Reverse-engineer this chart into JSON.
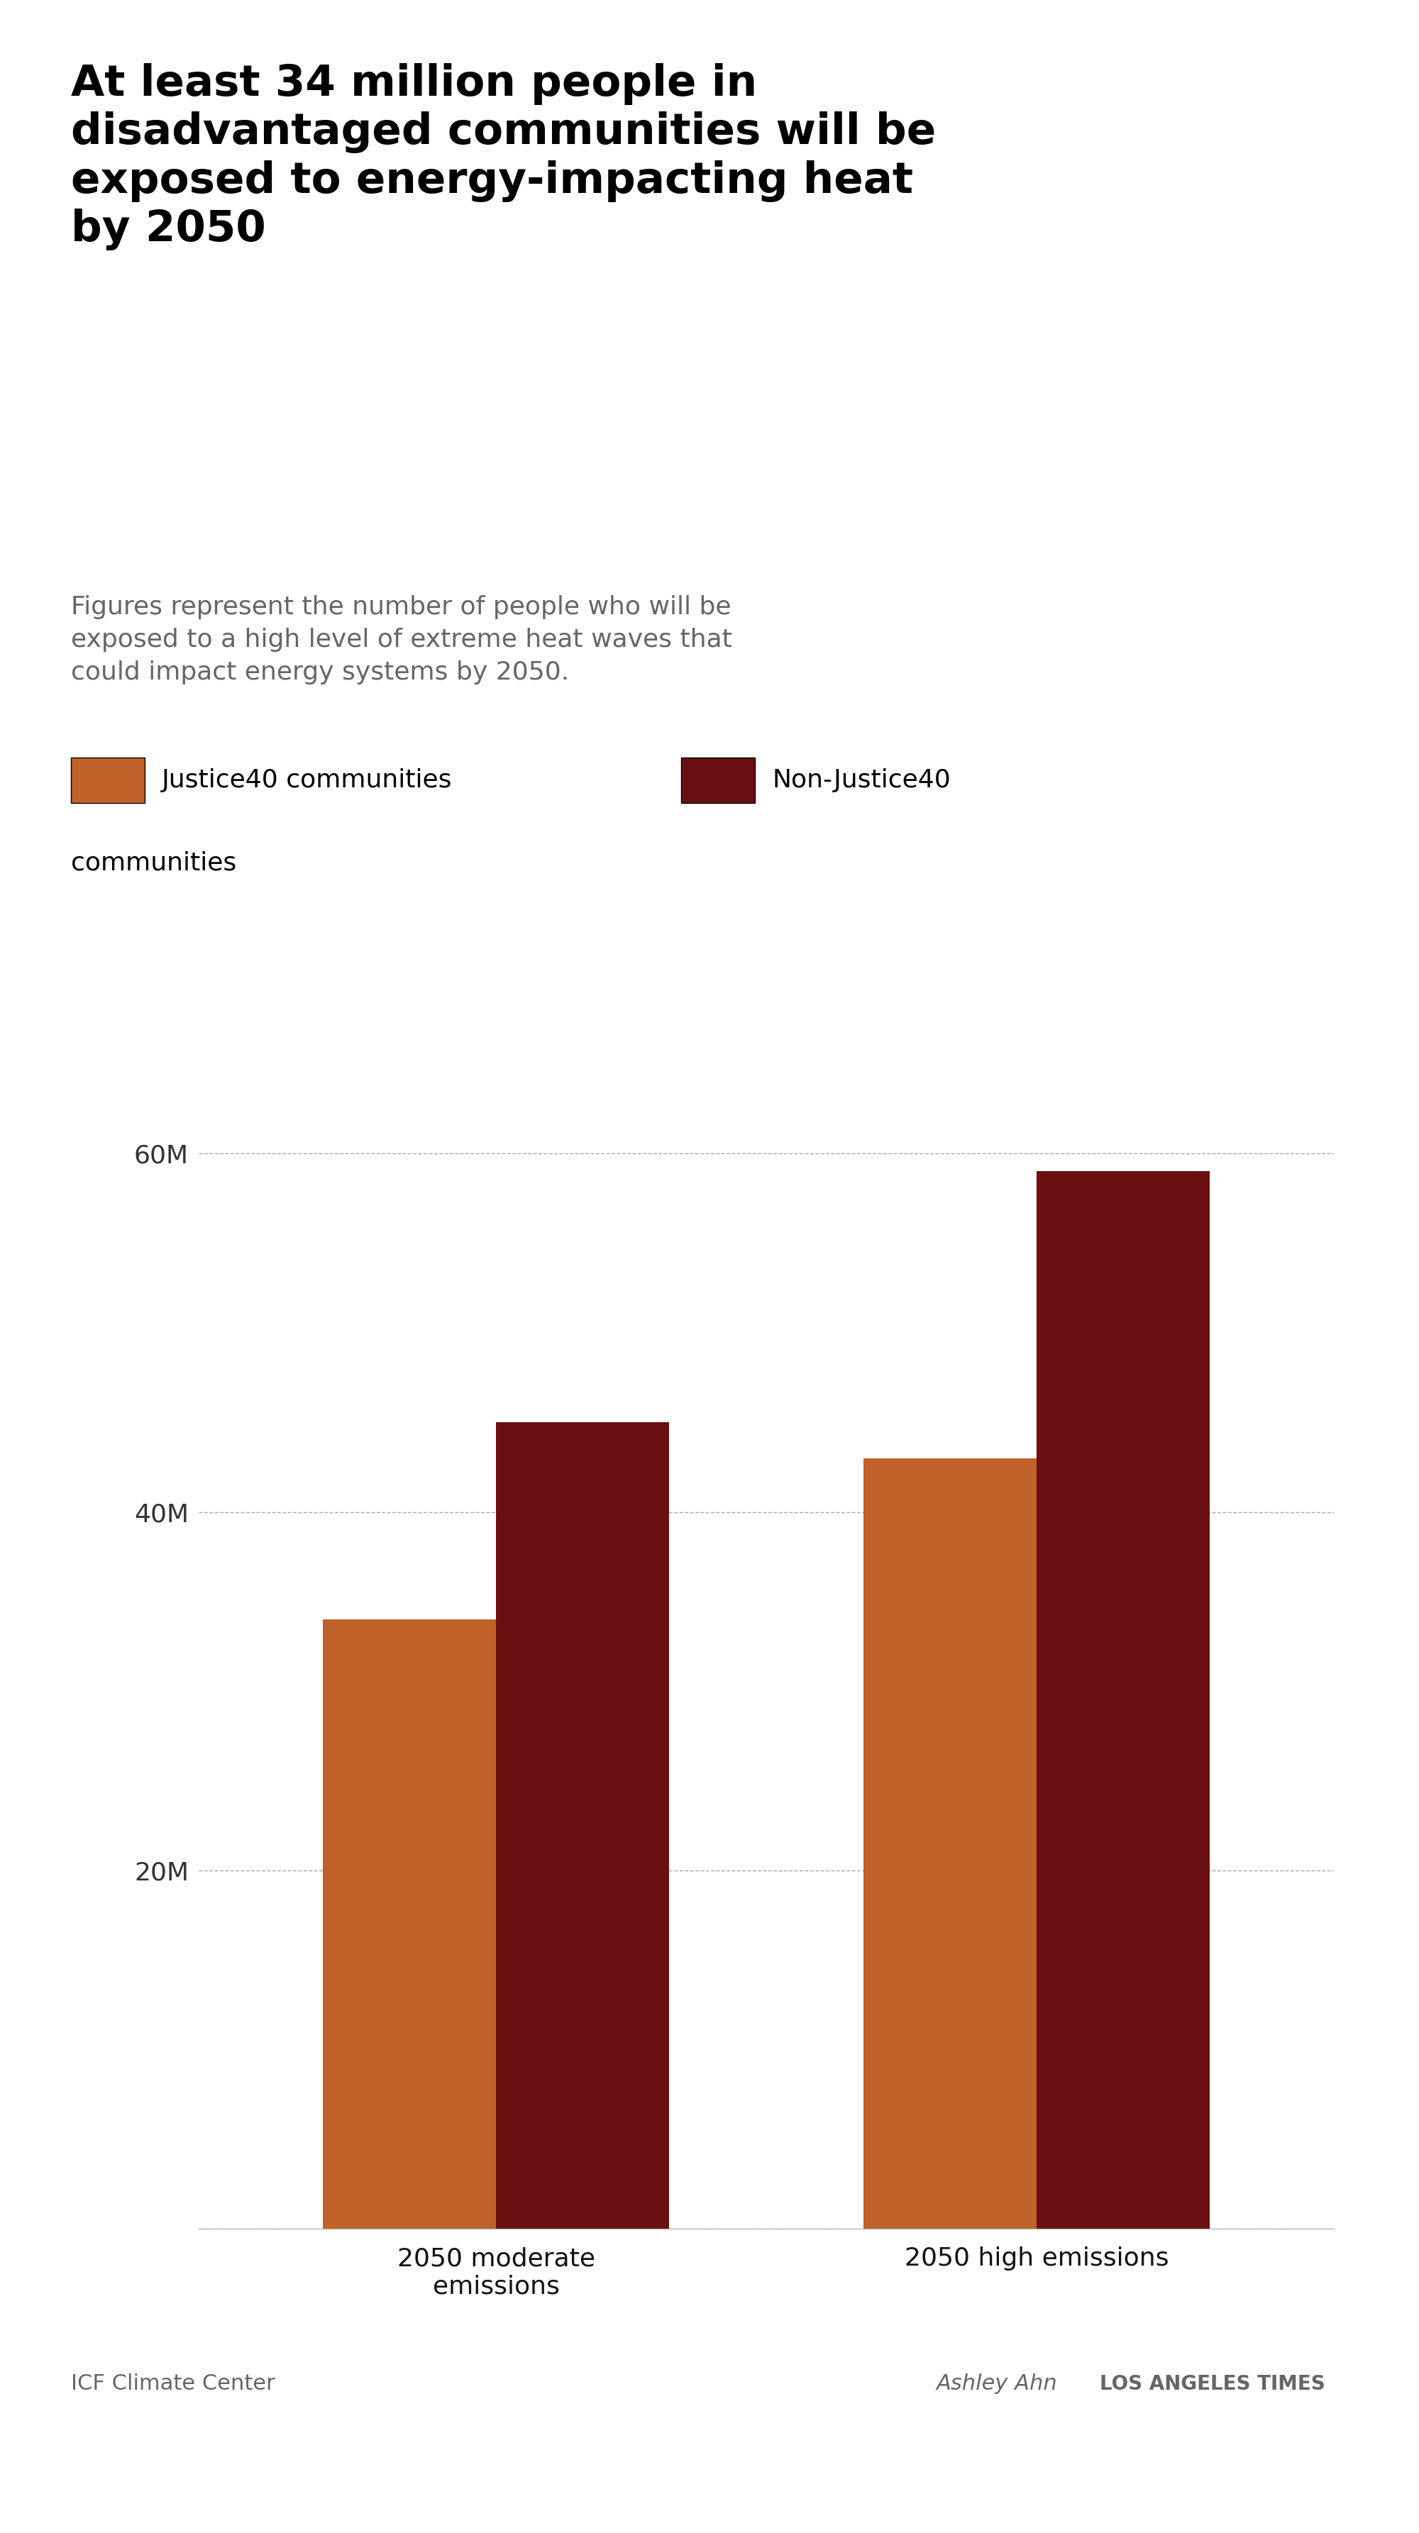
{
  "title": "At least 34 million people in\ndisadvantaged communities will be\nexposed to energy-impacting heat\nby 2050",
  "subtitle": "Figures represent the number of people who will be\nexposed to a high level of extreme heat waves that\ncould impact energy systems by 2050.",
  "categories": [
    "2050 moderate\nemissions",
    "2050 high emissions"
  ],
  "justice40_values": [
    34000000,
    43000000
  ],
  "non_justice40_values": [
    45000000,
    59000000
  ],
  "justice40_color": "#C1622A",
  "non_justice40_color": "#6B1010",
  "justice40_label": "Justice40 communities",
  "non_justice40_label": "Non-Justice40\ncommunities",
  "yticks": [
    0,
    20000000,
    40000000,
    60000000
  ],
  "ytick_labels": [
    "",
    "20M",
    "40M",
    "60M"
  ],
  "ylim": [
    0,
    65000000
  ],
  "source_text": "ICF Climate Center",
  "credit_text": "Ashley Ahn",
  "credit_outlet": "LOS ANGELES TIMES",
  "background_color": "#FFFFFF",
  "title_fontsize": 44,
  "subtitle_fontsize": 26,
  "axis_fontsize": 26,
  "legend_fontsize": 26,
  "bar_width": 0.32,
  "title_color": "#000000",
  "subtitle_color": "#666666",
  "ytick_color": "#333333",
  "xtick_color": "#111111",
  "grid_color": "#aaaaaa",
  "source_fontsize": 22,
  "credit_fontsize": 22
}
